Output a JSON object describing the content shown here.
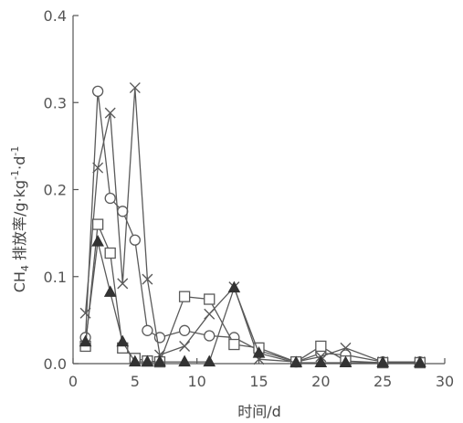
{
  "chart_data": {
    "type": "line",
    "xlabel": "时间/d",
    "ylabel_main": "CH",
    "ylabel_sub": "4",
    "ylabel_rest": " 排放率/g·kg",
    "ylabel_sup1": "-1",
    "ylabel_dot": "·d",
    "ylabel_sup2": "-1",
    "xlim": [
      0,
      30
    ],
    "ylim": [
      0,
      0.4
    ],
    "xticks": [
      0,
      5,
      10,
      15,
      20,
      25,
      30
    ],
    "xtick_labels": [
      "0",
      "5",
      "10",
      "15",
      "20",
      "25",
      "30"
    ],
    "yticks": [
      0.0,
      0.1,
      0.2,
      0.3,
      0.4
    ],
    "ytick_labels": [
      "0.0",
      "0.1",
      "0.2",
      "0.3",
      "0.4"
    ],
    "grid": false,
    "series": [
      {
        "marker": "circle",
        "x": [
          1,
          2,
          3,
          4,
          5,
          6,
          7,
          9,
          11,
          13,
          15,
          18,
          20,
          22,
          25,
          28
        ],
        "y": [
          0.03,
          0.313,
          0.19,
          0.175,
          0.142,
          0.038,
          0.03,
          0.038,
          0.032,
          0.03,
          0.015,
          0.002,
          0.012,
          0.01,
          0.002,
          0.002
        ]
      },
      {
        "marker": "cross",
        "x": [
          1,
          2,
          3,
          4,
          5,
          6,
          7,
          9,
          11,
          13,
          15,
          18,
          20,
          22,
          25,
          28
        ],
        "y": [
          0.058,
          0.225,
          0.288,
          0.092,
          0.317,
          0.097,
          0.01,
          0.02,
          0.057,
          0.088,
          0.005,
          0.002,
          0.008,
          0.018,
          0.002,
          0.002
        ]
      },
      {
        "marker": "square",
        "x": [
          1,
          2,
          3,
          4,
          5,
          6,
          7,
          9,
          11,
          13,
          15,
          18,
          20,
          22,
          25,
          28
        ],
        "y": [
          0.02,
          0.16,
          0.127,
          0.018,
          0.006,
          0.003,
          0.002,
          0.077,
          0.074,
          0.022,
          0.018,
          0.002,
          0.02,
          0.003,
          0.001,
          0.001
        ]
      },
      {
        "marker": "triangle",
        "x": [
          1,
          2,
          3,
          4,
          5,
          6,
          7,
          9,
          11,
          13,
          15,
          18,
          20,
          22,
          25,
          28
        ],
        "y": [
          0.025,
          0.14,
          0.082,
          0.025,
          0.002,
          0.002,
          0.002,
          0.002,
          0.002,
          0.087,
          0.012,
          0.001,
          0.001,
          0.001,
          0.001,
          0.001
        ]
      }
    ]
  }
}
